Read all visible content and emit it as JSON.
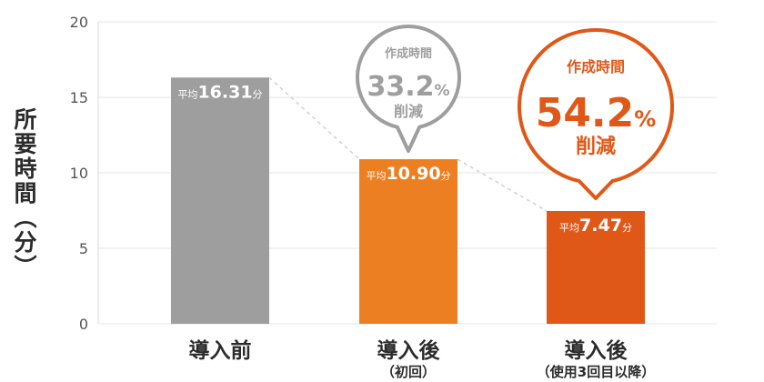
{
  "chart_data": {
    "type": "bar",
    "ylabel": "所要時間（分）",
    "ylim": [
      0,
      20
    ],
    "yticks": [
      0,
      5,
      10,
      15,
      20
    ],
    "grid": true,
    "categories": [
      {
        "main": "導入前",
        "sub": ""
      },
      {
        "main": "導入後",
        "sub": "（初回）"
      },
      {
        "main": "導入後",
        "sub": "（使用3回目以降）"
      }
    ],
    "values": [
      16.31,
      10.9,
      7.47
    ],
    "value_labels": [
      {
        "prefix": "平均",
        "value": "16.31",
        "unit": "分"
      },
      {
        "prefix": "平均",
        "value": "10.90",
        "unit": "分"
      },
      {
        "prefix": "平均",
        "value": "7.47",
        "unit": "分"
      }
    ],
    "colors": [
      "#9e9e9e",
      "#ec7f22",
      "#e05818"
    ],
    "annotations": [
      {
        "bar_index": 1,
        "line1": "作成時間",
        "value": "33.2",
        "unit": "%",
        "line3": "削減",
        "color": "#9e9e9e"
      },
      {
        "bar_index": 2,
        "line1": "作成時間",
        "value": "54.2",
        "unit": "%",
        "line3": "削減",
        "color": "#e05818"
      }
    ]
  }
}
